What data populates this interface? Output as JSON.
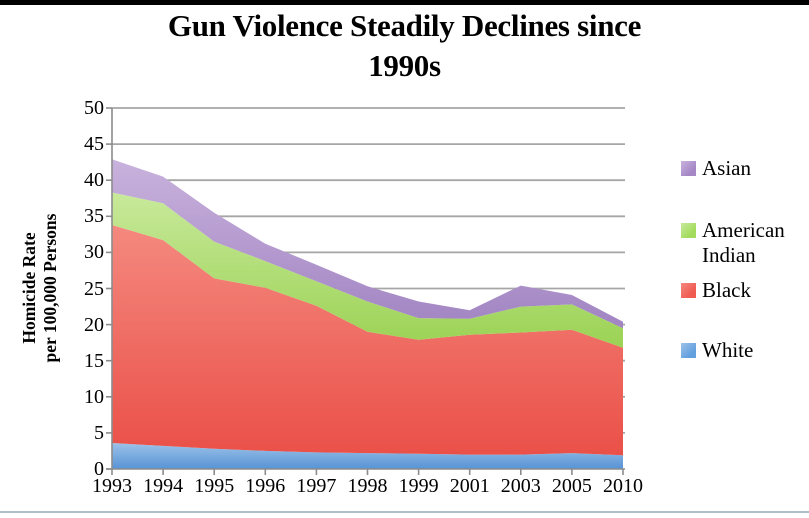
{
  "page": {
    "background": "#ffffff",
    "top_border_color": "#000000",
    "bottom_border_color": "#aebfcb"
  },
  "chart_data": {
    "type": "area",
    "stacked": true,
    "title": "Gun Violence Steadily Declines since 1990s",
    "title_line1": "Gun Violence Steadily Declines since",
    "title_line2": "1990s",
    "xlabel": "",
    "ylabel": "Homicide Rate per 100,000 Persons",
    "ylabel_line1": "Homicide Rate",
    "ylabel_line2": "per 100,000 Persons",
    "categories": [
      "1993",
      "1994",
      "1995",
      "1996",
      "1997",
      "1998",
      "1999",
      "2001",
      "2003",
      "2005",
      "2010"
    ],
    "series": [
      {
        "name": "White",
        "values": [
          3.6,
          3.2,
          2.8,
          2.5,
          2.3,
          2.2,
          2.1,
          2.0,
          2.0,
          2.2,
          1.9
        ],
        "color_top": "#9cc2e8",
        "color_bottom": "#5793d6",
        "legend_color": "#64a0de"
      },
      {
        "name": "Black",
        "values": [
          30.2,
          28.5,
          23.6,
          22.6,
          20.3,
          16.8,
          15.8,
          16.6,
          16.9,
          17.1,
          14.9
        ],
        "color_top": "#f4897f",
        "color_bottom": "#ea5048",
        "legend_color": "#f05b52"
      },
      {
        "name": "American Indian",
        "values": [
          4.5,
          5.1,
          5.1,
          3.7,
          3.4,
          4.2,
          3.0,
          2.2,
          3.6,
          3.5,
          2.7
        ],
        "color_top": "#c8e99b",
        "color_bottom": "#9bd254",
        "legend_color": "#a3dc5c"
      },
      {
        "name": "Asian",
        "values": [
          4.6,
          3.7,
          4.0,
          2.4,
          2.3,
          2.1,
          2.3,
          1.2,
          2.9,
          1.3,
          0.9
        ],
        "color_top": "#c9b2dd",
        "color_bottom": "#a184c2",
        "legend_color": "#a687c6"
      }
    ],
    "cumulative_totals": [
      42.9,
      40.5,
      35.5,
      31.2,
      28.3,
      25.3,
      23.2,
      22.0,
      25.4,
      24.1,
      20.4
    ],
    "y_ticks": [
      0,
      5,
      10,
      15,
      20,
      25,
      30,
      35,
      40,
      45,
      50
    ],
    "ylim": [
      0,
      50
    ],
    "grid": true,
    "gridline_color": "#a6a6a6",
    "axis_color": "#8c8c8c",
    "legend_position": "right",
    "legend_order_top_to_bottom": [
      "Asian",
      "American Indian",
      "Black",
      "White"
    ]
  }
}
